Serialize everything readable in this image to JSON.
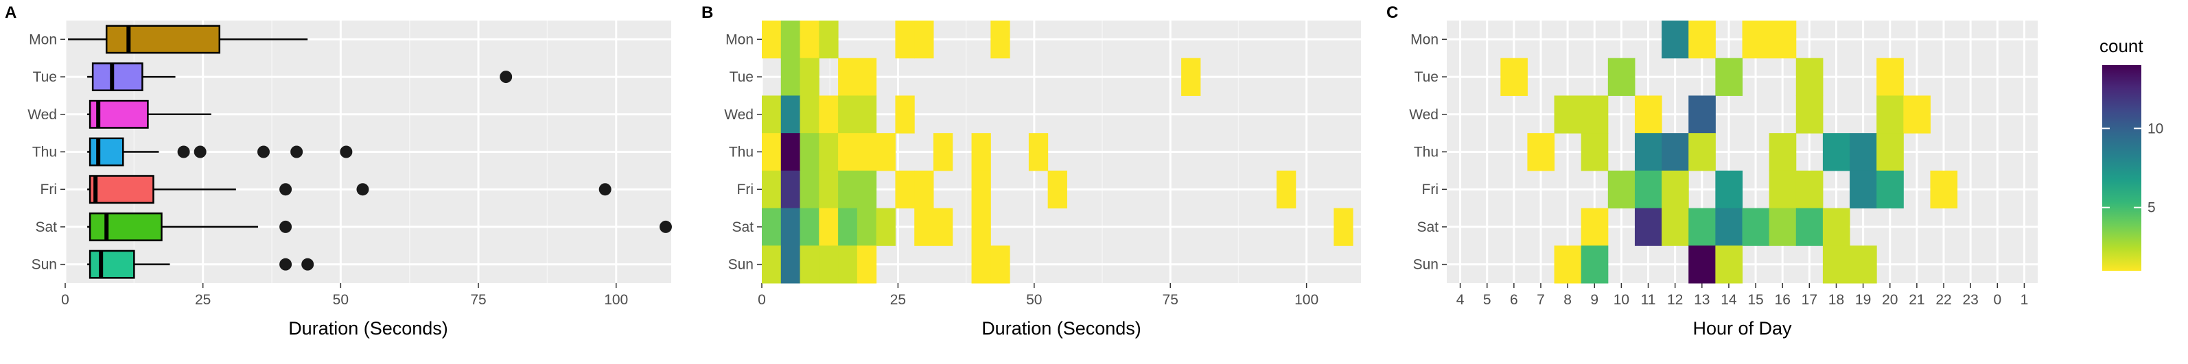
{
  "chart_data": [
    {
      "panel": "A",
      "type": "boxplot",
      "xlabel": "Duration (Seconds)",
      "xlim": [
        0,
        110
      ],
      "xticks": [
        "0",
        "25",
        "50",
        "75",
        "100"
      ],
      "xtick_values": [
        0,
        25,
        50,
        75,
        100
      ],
      "categories": [
        "Mon",
        "Tue",
        "Wed",
        "Thu",
        "Fri",
        "Sat",
        "Sun"
      ],
      "boxes": [
        {
          "day": "Mon",
          "color": "#B8860B",
          "whisker_low": 0.5,
          "q1": 7.5,
          "median": 11.5,
          "q3": 28,
          "whisker_high": 44,
          "outliers": []
        },
        {
          "day": "Tue",
          "color": "#8B7CF6",
          "whisker_low": 4,
          "q1": 5,
          "median": 8.5,
          "q3": 14,
          "whisker_high": 20,
          "outliers": [
            80
          ]
        },
        {
          "day": "Wed",
          "color": "#EE44DD",
          "whisker_low": 4,
          "q1": 4.5,
          "median": 6,
          "q3": 15,
          "whisker_high": 26.5,
          "outliers": []
        },
        {
          "day": "Thu",
          "color": "#22A9E6",
          "whisker_low": 4,
          "q1": 4.5,
          "median": 6,
          "q3": 10.5,
          "whisker_high": 17,
          "outliers": [
            21.5,
            24.5,
            36,
            42,
            51
          ]
        },
        {
          "day": "Fri",
          "color": "#F66060",
          "whisker_low": 4,
          "q1": 4.5,
          "median": 5.5,
          "q3": 16,
          "whisker_high": 31,
          "outliers": [
            40,
            54,
            98
          ]
        },
        {
          "day": "Sat",
          "color": "#44C21A",
          "whisker_low": 4,
          "q1": 4.5,
          "median": 7.5,
          "q3": 17.5,
          "whisker_high": 35,
          "outliers": [
            40,
            109
          ]
        },
        {
          "day": "Sun",
          "color": "#22C58E",
          "whisker_low": 4,
          "q1": 4.5,
          "median": 6.5,
          "q3": 12.5,
          "whisker_high": 19,
          "outliers": [
            40,
            44
          ]
        }
      ]
    },
    {
      "panel": "B",
      "type": "heatmap",
      "xlabel": "Duration (Seconds)",
      "xlim": [
        0,
        110
      ],
      "xticks": [
        "0",
        "25",
        "50",
        "75",
        "100"
      ],
      "xtick_values": [
        0,
        25,
        50,
        75,
        100
      ],
      "categories": [
        "Mon",
        "Tue",
        "Wed",
        "Thu",
        "Fri",
        "Sat",
        "Sun"
      ],
      "bin_width": 3.5,
      "cells": [
        {
          "day": "Mon",
          "x": 0,
          "count": 1
        },
        {
          "day": "Mon",
          "x": 3.5,
          "count": 3
        },
        {
          "day": "Mon",
          "x": 7,
          "count": 1
        },
        {
          "day": "Mon",
          "x": 10.5,
          "count": 2
        },
        {
          "day": "Mon",
          "x": 24.5,
          "count": 1
        },
        {
          "day": "Mon",
          "x": 28,
          "count": 1
        },
        {
          "day": "Mon",
          "x": 42,
          "count": 1
        },
        {
          "day": "Tue",
          "x": 3.5,
          "count": 3
        },
        {
          "day": "Tue",
          "x": 7,
          "count": 2
        },
        {
          "day": "Tue",
          "x": 14,
          "count": 1
        },
        {
          "day": "Tue",
          "x": 17.5,
          "count": 1
        },
        {
          "day": "Tue",
          "x": 77,
          "count": 1
        },
        {
          "day": "Wed",
          "x": 0,
          "count": 2
        },
        {
          "day": "Wed",
          "x": 3.5,
          "count": 8
        },
        {
          "day": "Wed",
          "x": 7,
          "count": 2
        },
        {
          "day": "Wed",
          "x": 10.5,
          "count": 1
        },
        {
          "day": "Wed",
          "x": 14,
          "count": 2
        },
        {
          "day": "Wed",
          "x": 17.5,
          "count": 2
        },
        {
          "day": "Wed",
          "x": 24.5,
          "count": 1
        },
        {
          "day": "Thu",
          "x": 0,
          "count": 1
        },
        {
          "day": "Thu",
          "x": 3.5,
          "count": 14
        },
        {
          "day": "Thu",
          "x": 7,
          "count": 3
        },
        {
          "day": "Thu",
          "x": 10.5,
          "count": 2
        },
        {
          "day": "Thu",
          "x": 14,
          "count": 1
        },
        {
          "day": "Thu",
          "x": 17.5,
          "count": 1
        },
        {
          "day": "Thu",
          "x": 21,
          "count": 1
        },
        {
          "day": "Thu",
          "x": 31.5,
          "count": 1
        },
        {
          "day": "Thu",
          "x": 38.5,
          "count": 1
        },
        {
          "day": "Thu",
          "x": 49,
          "count": 1
        },
        {
          "day": "Fri",
          "x": 0,
          "count": 2
        },
        {
          "day": "Fri",
          "x": 3.5,
          "count": 12
        },
        {
          "day": "Fri",
          "x": 7,
          "count": 3
        },
        {
          "day": "Fri",
          "x": 10.5,
          "count": 2
        },
        {
          "day": "Fri",
          "x": 14,
          "count": 3
        },
        {
          "day": "Fri",
          "x": 17.5,
          "count": 3
        },
        {
          "day": "Fri",
          "x": 24.5,
          "count": 1
        },
        {
          "day": "Fri",
          "x": 28,
          "count": 1
        },
        {
          "day": "Fri",
          "x": 38.5,
          "count": 1
        },
        {
          "day": "Fri",
          "x": 52.5,
          "count": 1
        },
        {
          "day": "Fri",
          "x": 94.5,
          "count": 1
        },
        {
          "day": "Sat",
          "x": 0,
          "count": 4
        },
        {
          "day": "Sat",
          "x": 3.5,
          "count": 9
        },
        {
          "day": "Sat",
          "x": 7,
          "count": 4
        },
        {
          "day": "Sat",
          "x": 10.5,
          "count": 1
        },
        {
          "day": "Sat",
          "x": 14,
          "count": 4
        },
        {
          "day": "Sat",
          "x": 17.5,
          "count": 3
        },
        {
          "day": "Sat",
          "x": 21,
          "count": 2
        },
        {
          "day": "Sat",
          "x": 28,
          "count": 1
        },
        {
          "day": "Sat",
          "x": 31.5,
          "count": 1
        },
        {
          "day": "Sat",
          "x": 38.5,
          "count": 1
        },
        {
          "day": "Sat",
          "x": 105,
          "count": 1
        },
        {
          "day": "Sun",
          "x": 0,
          "count": 2
        },
        {
          "day": "Sun",
          "x": 3.5,
          "count": 9
        },
        {
          "day": "Sun",
          "x": 7,
          "count": 2
        },
        {
          "day": "Sun",
          "x": 10.5,
          "count": 2
        },
        {
          "day": "Sun",
          "x": 14,
          "count": 2
        },
        {
          "day": "Sun",
          "x": 17.5,
          "count": 1
        },
        {
          "day": "Sun",
          "x": 38.5,
          "count": 1
        },
        {
          "day": "Sun",
          "x": 42,
          "count": 1
        }
      ]
    },
    {
      "panel": "C",
      "type": "heatmap",
      "xlabel": "Hour of Day",
      "xticks": [
        "4",
        "5",
        "6",
        "7",
        "8",
        "9",
        "10",
        "11",
        "12",
        "13",
        "14",
        "15",
        "16",
        "17",
        "18",
        "19",
        "20",
        "21",
        "22",
        "23",
        "0",
        "1"
      ],
      "categories": [
        "Mon",
        "Tue",
        "Wed",
        "Thu",
        "Fri",
        "Sat",
        "Sun"
      ],
      "cells": [
        {
          "day": "Mon",
          "hour": "12",
          "count": 8
        },
        {
          "day": "Mon",
          "hour": "13",
          "count": 1
        },
        {
          "day": "Mon",
          "hour": "15",
          "count": 1
        },
        {
          "day": "Mon",
          "hour": "16",
          "count": 1
        },
        {
          "day": "Tue",
          "hour": "6",
          "count": 1
        },
        {
          "day": "Tue",
          "hour": "10",
          "count": 3
        },
        {
          "day": "Tue",
          "hour": "14",
          "count": 3
        },
        {
          "day": "Tue",
          "hour": "17",
          "count": 2
        },
        {
          "day": "Tue",
          "hour": "20",
          "count": 1
        },
        {
          "day": "Wed",
          "hour": "8",
          "count": 2
        },
        {
          "day": "Wed",
          "hour": "9",
          "count": 2
        },
        {
          "day": "Wed",
          "hour": "11",
          "count": 1
        },
        {
          "day": "Wed",
          "hour": "13",
          "count": 10
        },
        {
          "day": "Wed",
          "hour": "17",
          "count": 2
        },
        {
          "day": "Wed",
          "hour": "20",
          "count": 2
        },
        {
          "day": "Wed",
          "hour": "21",
          "count": 1
        },
        {
          "day": "Thu",
          "hour": "7",
          "count": 1
        },
        {
          "day": "Thu",
          "hour": "9",
          "count": 2
        },
        {
          "day": "Thu",
          "hour": "11",
          "count": 8
        },
        {
          "day": "Thu",
          "hour": "12",
          "count": 9
        },
        {
          "day": "Thu",
          "hour": "13",
          "count": 2
        },
        {
          "day": "Thu",
          "hour": "16",
          "count": 2
        },
        {
          "day": "Thu",
          "hour": "18",
          "count": 7
        },
        {
          "day": "Thu",
          "hour": "19",
          "count": 8
        },
        {
          "day": "Thu",
          "hour": "20",
          "count": 2
        },
        {
          "day": "Fri",
          "hour": "10",
          "count": 3
        },
        {
          "day": "Fri",
          "hour": "11",
          "count": 5
        },
        {
          "day": "Fri",
          "hour": "12",
          "count": 2
        },
        {
          "day": "Fri",
          "hour": "14",
          "count": 7
        },
        {
          "day": "Fri",
          "hour": "16",
          "count": 2
        },
        {
          "day": "Fri",
          "hour": "17",
          "count": 2
        },
        {
          "day": "Fri",
          "hour": "19",
          "count": 8
        },
        {
          "day": "Fri",
          "hour": "20",
          "count": 6
        },
        {
          "day": "Fri",
          "hour": "22",
          "count": 1
        },
        {
          "day": "Sat",
          "hour": "9",
          "count": 1
        },
        {
          "day": "Sat",
          "hour": "11",
          "count": 12
        },
        {
          "day": "Sat",
          "hour": "12",
          "count": 2
        },
        {
          "day": "Sat",
          "hour": "13",
          "count": 5
        },
        {
          "day": "Sat",
          "hour": "14",
          "count": 8
        },
        {
          "day": "Sat",
          "hour": "15",
          "count": 5
        },
        {
          "day": "Sat",
          "hour": "16",
          "count": 3
        },
        {
          "day": "Sat",
          "hour": "17",
          "count": 5
        },
        {
          "day": "Sat",
          "hour": "18",
          "count": 2
        },
        {
          "day": "Sun",
          "hour": "8",
          "count": 1
        },
        {
          "day": "Sun",
          "hour": "9",
          "count": 5
        },
        {
          "day": "Sun",
          "hour": "13",
          "count": 14
        },
        {
          "day": "Sun",
          "hour": "14",
          "count": 2
        },
        {
          "day": "Sun",
          "hour": "18",
          "count": 2
        },
        {
          "day": "Sun",
          "hour": "19",
          "count": 2
        }
      ]
    }
  ],
  "legend": {
    "title": "count",
    "min": 1,
    "max": 14,
    "ticks": [
      "5",
      "10"
    ],
    "tick_values": [
      5,
      10
    ],
    "colors": [
      "#FDE725",
      "#B5DE2B",
      "#6ECE58",
      "#35B779",
      "#1F9E89",
      "#26828E",
      "#31688E",
      "#3E4989",
      "#482878",
      "#440154"
    ]
  },
  "panel_letters": [
    "A",
    "B",
    "C"
  ]
}
